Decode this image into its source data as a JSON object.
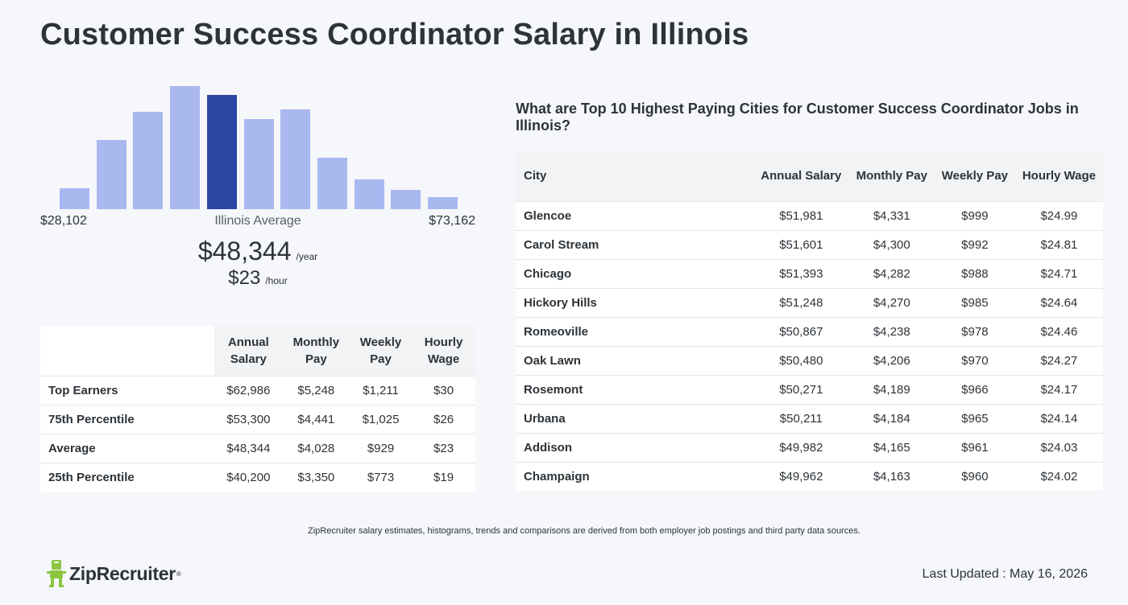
{
  "title": "Customer Success Coordinator Salary in Illinois",
  "histogram": {
    "min_label": "$28,102",
    "max_label": "$73,162",
    "avg_label": "Illinois Average",
    "bars": [
      0.17,
      0.56,
      0.79,
      1.0,
      0.93,
      0.73,
      0.81,
      0.42,
      0.24,
      0.16,
      0.1
    ],
    "highlight_index": 4,
    "bar_color": "#aab8f0",
    "highlight_color": "#2a47a4"
  },
  "salary": {
    "annual": "$48,344",
    "annual_unit": "/year",
    "hourly": "$23",
    "hourly_unit": "/hour"
  },
  "pct_table": {
    "headers": [
      "Annual Salary",
      "Monthly Pay",
      "Weekly Pay",
      "Hourly Wage"
    ],
    "rows": [
      {
        "label": "Top Earners",
        "values": [
          "$62,986",
          "$5,248",
          "$1,211",
          "$30"
        ]
      },
      {
        "label": "75th Percentile",
        "values": [
          "$53,300",
          "$4,441",
          "$1,025",
          "$26"
        ]
      },
      {
        "label": "Average",
        "values": [
          "$48,344",
          "$4,028",
          "$929",
          "$23"
        ]
      },
      {
        "label": "25th Percentile",
        "values": [
          "$40,200",
          "$3,350",
          "$773",
          "$19"
        ]
      }
    ]
  },
  "cities": {
    "heading": "What are Top 10 Highest Paying Cities for Customer Success Coordinator Jobs in Illinois?",
    "headers": [
      "City",
      "Annual Salary",
      "Monthly Pay",
      "Weekly Pay",
      "Hourly Wage"
    ],
    "rows": [
      {
        "city": "Glencoe",
        "values": [
          "$51,981",
          "$4,331",
          "$999",
          "$24.99"
        ]
      },
      {
        "city": "Carol Stream",
        "values": [
          "$51,601",
          "$4,300",
          "$992",
          "$24.81"
        ]
      },
      {
        "city": "Chicago",
        "values": [
          "$51,393",
          "$4,282",
          "$988",
          "$24.71"
        ]
      },
      {
        "city": "Hickory Hills",
        "values": [
          "$51,248",
          "$4,270",
          "$985",
          "$24.64"
        ]
      },
      {
        "city": "Romeoville",
        "values": [
          "$50,867",
          "$4,238",
          "$978",
          "$24.46"
        ]
      },
      {
        "city": "Oak Lawn",
        "values": [
          "$50,480",
          "$4,206",
          "$970",
          "$24.27"
        ]
      },
      {
        "city": "Rosemont",
        "values": [
          "$50,271",
          "$4,189",
          "$966",
          "$24.17"
        ]
      },
      {
        "city": "Urbana",
        "values": [
          "$50,211",
          "$4,184",
          "$965",
          "$24.14"
        ]
      },
      {
        "city": "Addison",
        "values": [
          "$49,982",
          "$4,165",
          "$961",
          "$24.03"
        ]
      },
      {
        "city": "Champaign",
        "values": [
          "$49,962",
          "$4,163",
          "$960",
          "$24.02"
        ]
      }
    ]
  },
  "footnote": "ZipRecruiter salary estimates, histograms, trends and comparisons are derived from both employer job postings and third party data sources.",
  "logo": {
    "text": "ZipRecruiter",
    "icon": "ziprecruiter-mascot-icon",
    "color": "#8bc53f"
  },
  "last_updated": "Last Updated : May 16, 2026"
}
